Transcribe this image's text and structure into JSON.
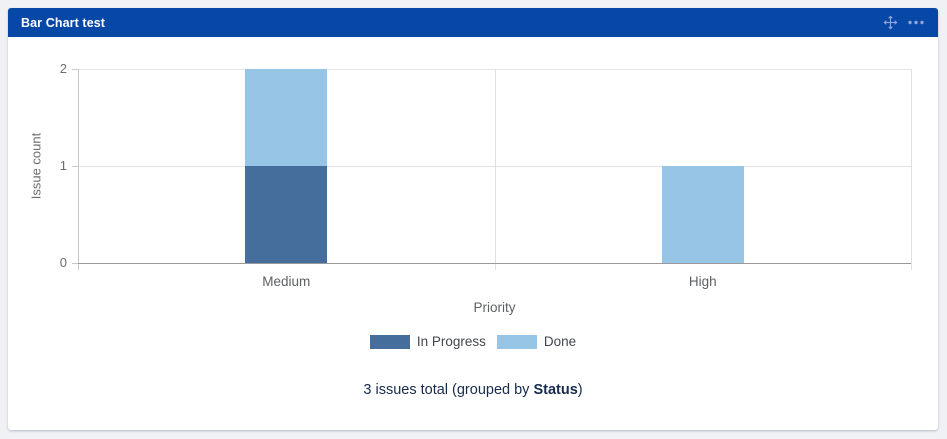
{
  "gadget": {
    "title": "Bar Chart test",
    "header_color": "#0747A6",
    "icon_color": "#8EA3DB",
    "icons": [
      {
        "name": "move-icon",
        "meaning": "drag gadget handle"
      },
      {
        "name": "more-options-icon",
        "meaning": "gadget menu ellipsis"
      }
    ]
  },
  "chart_data": {
    "type": "bar",
    "stacked": true,
    "title": "",
    "xlabel": "Priority",
    "ylabel": "Issue count",
    "categories": [
      "Medium",
      "High"
    ],
    "series": [
      {
        "name": "In Progress",
        "color": "#466E9C",
        "values": [
          1,
          0
        ]
      },
      {
        "name": "Done",
        "color": "#96C5E5",
        "values": [
          1,
          1
        ]
      }
    ],
    "yticks": [
      0,
      1,
      2
    ],
    "ylim": [
      0,
      2
    ],
    "grid": true,
    "legend_position": "bottom"
  },
  "footer": {
    "prefix": "3 issues total (grouped by ",
    "group_by": "Status",
    "suffix": ")"
  }
}
